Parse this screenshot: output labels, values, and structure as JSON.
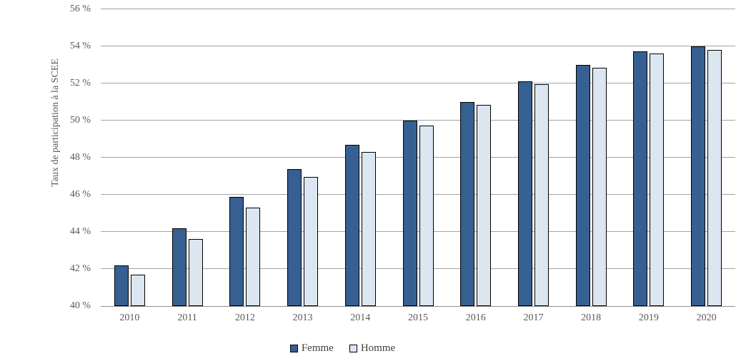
{
  "chart_data": {
    "type": "bar",
    "title": "",
    "xlabel": "",
    "ylabel": "Taux de participation à la SCEE",
    "ylim": [
      40,
      56
    ],
    "ytick_step": 2,
    "ytick_labels": [
      "40 %",
      "42 %",
      "44 %",
      "46 %",
      "48 %",
      "50 %",
      "52 %",
      "54 %",
      "56 %"
    ],
    "grid": "horizontal",
    "legend_position": "bottom",
    "categories": [
      "2010",
      "2011",
      "2012",
      "2013",
      "2014",
      "2015",
      "2016",
      "2017",
      "2018",
      "2019",
      "2020"
    ],
    "series": [
      {
        "name": "Femme",
        "color": "#366092",
        "border_color": "#000000",
        "values": [
          42.2,
          44.2,
          45.9,
          47.4,
          48.7,
          50.0,
          51.0,
          52.1,
          53.0,
          53.75,
          54.0
        ]
      },
      {
        "name": "Homme",
        "color": "#dce6f1",
        "border_color": "#000000",
        "values": [
          41.7,
          43.6,
          45.3,
          46.95,
          48.3,
          49.75,
          50.85,
          51.95,
          52.85,
          53.6,
          53.8
        ]
      }
    ],
    "colors": {
      "gridline": "#a3a3a3",
      "axis_line": "#8f8f8f",
      "tick_text": "#595959",
      "legend_text": "#404040",
      "background": "#ffffff"
    }
  }
}
